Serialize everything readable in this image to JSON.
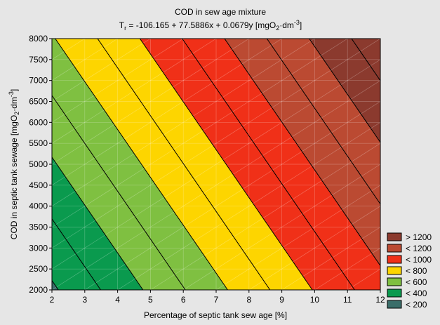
{
  "chart_data": {
    "type": "contour",
    "title": "COD in sew age mixture",
    "subtitle": {
      "lhs": "T",
      "lhs_sub": "r",
      "equation": " = -106.165 + 77.5886x + 0.0679y [mgO",
      "unit_sub": "2",
      "unit_mid": "·dm",
      "unit_sup": "-3",
      "unit_end": "]"
    },
    "equation_coefficients": {
      "intercept": -106.165,
      "x": 77.5886,
      "y": 0.0679
    },
    "xlabel": "Percentage of septic tank sew age [%]",
    "ylabel": {
      "main": "COD in septic tank sewage [mgO",
      "sub": "2",
      "mid": "·dm",
      "sup": "-3",
      "end": "]"
    },
    "xlim": [
      2,
      12
    ],
    "ylim": [
      2000,
      8000
    ],
    "x_ticks": [
      2,
      3,
      4,
      5,
      6,
      7,
      8,
      9,
      10,
      11,
      12
    ],
    "y_ticks": [
      2000,
      2500,
      3000,
      3500,
      4000,
      4500,
      5000,
      5500,
      6000,
      6500,
      7000,
      7500,
      8000
    ],
    "contour_levels": [
      200,
      300,
      400,
      500,
      600,
      700,
      800,
      900,
      1000,
      1100,
      1200,
      1300,
      1400
    ],
    "bands": [
      {
        "label": "> 1200",
        "color": "#8b3a2e"
      },
      {
        "label": "< 1200",
        "color": "#bb4a32"
      },
      {
        "label": "< 1000",
        "color": "#f03018"
      },
      {
        "label": "< 800",
        "color": "#fdd500"
      },
      {
        "label": "< 600",
        "color": "#7fc041"
      },
      {
        "label": "< 400",
        "color": "#0a9a4e"
      },
      {
        "label": "< 200",
        "color": "#3b6e6a"
      }
    ],
    "legend_position": "bottom-right",
    "grid": false
  }
}
